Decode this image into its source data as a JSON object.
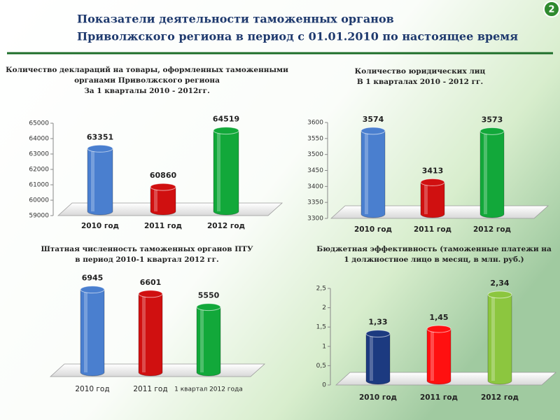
{
  "slide_title": [
    "Показатели деятельности  таможенных органов",
    "Приволжского региона в период с 01.01.2010 по настоящее время"
  ],
  "page_number": "2",
  "chart_data": [
    {
      "type": "bar",
      "title": [
        "Количество деклараций на товары, оформленных таможенными",
        "органами Приволжского региона",
        "За 1 кварталы 2010 - 2012гг."
      ],
      "categories": [
        "2010 год",
        "2011 год",
        "2012 год"
      ],
      "values": [
        63351,
        60860,
        64519
      ],
      "colors": [
        "#4a7fcf",
        "#d01010",
        "#12a83a"
      ],
      "ylim": [
        59000,
        65000
      ],
      "yticks": [
        59000,
        60000,
        61000,
        62000,
        63000,
        64000,
        65000
      ]
    },
    {
      "type": "bar",
      "title": [
        "Количество юридических лиц",
        "В 1 кварталах  2010 - 2012 гг."
      ],
      "categories": [
        "2010 год",
        "2011 год",
        "2012 год"
      ],
      "values": [
        3574,
        3413,
        3573
      ],
      "colors": [
        "#4a7fcf",
        "#d01010",
        "#12a83a"
      ],
      "ylim": [
        3300,
        3600
      ],
      "yticks": [
        3300,
        3350,
        3400,
        3450,
        3500,
        3550,
        3600
      ]
    },
    {
      "type": "bar",
      "title": [
        "Штатная численность таможенных органов ПТУ",
        "в период  2010-1 квартал 2012 гг."
      ],
      "categories": [
        "2010 год",
        "2011 год",
        "1 квартал 2012 года"
      ],
      "values": [
        6945,
        6601,
        5550
      ],
      "colors": [
        "#4a7fcf",
        "#d01010",
        "#12a83a"
      ]
    },
    {
      "type": "bar",
      "title": [
        "Бюджетная эффективность (таможенные платежи на",
        "1 должностное лицо в месяц, в млн. руб.)"
      ],
      "categories": [
        "2010 год",
        "2011 год",
        "2012 год"
      ],
      "values": [
        1.33,
        1.45,
        2.34
      ],
      "value_labels": [
        "1,33",
        "1,45",
        "2,34"
      ],
      "colors": [
        "#1c3a80",
        "#ff1010",
        "#8cc63f"
      ],
      "ylim": [
        0,
        2.5
      ],
      "yticks": [
        0,
        {
          "value": 0.5,
          "label": "0,5"
        },
        1,
        {
          "value": 1.5,
          "label": "1,5"
        },
        2,
        {
          "value": 2.5,
          "label": "2,5"
        }
      ]
    }
  ]
}
